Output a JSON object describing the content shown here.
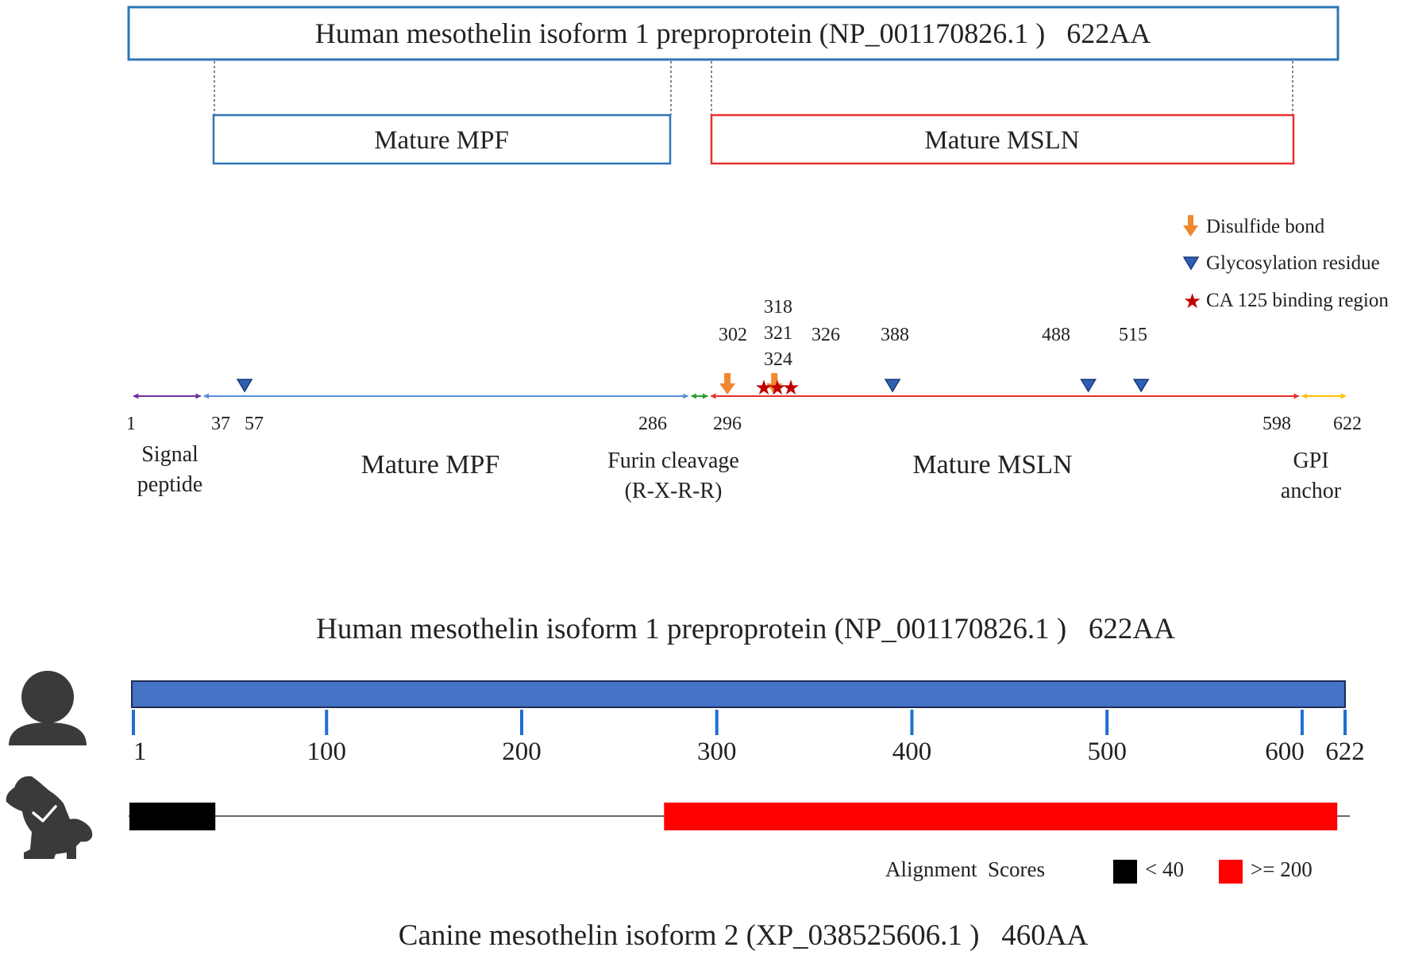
{
  "protein_length": 622,
  "top_box": {
    "label": "Human mesothelin isoform 1 preproprotein (NP_001170826.1 )   622AA",
    "color": "#2e75b6"
  },
  "mature_boxes": {
    "mpf": {
      "label": "Mature MPF",
      "start": 37,
      "end": 286,
      "color": "#2e75b6"
    },
    "msln": {
      "label": "Mature MSLN",
      "start": 296,
      "end": 598,
      "color": "#e8302f"
    }
  },
  "legend": {
    "disulfide": "Disulfide bond",
    "glycosylation": "Glycosylation residue",
    "ca125": "CA 125 binding region",
    "disulfide_color": "#f0882f",
    "glycosylation_color": "#2e5fb3",
    "ca125_color": "#c00000"
  },
  "domain_segments": [
    {
      "name": "signal",
      "start": 1,
      "end": 37,
      "color": "#7030a0"
    },
    {
      "name": "mpf",
      "start": 37,
      "end": 286,
      "color": "#5b8fd6"
    },
    {
      "name": "furin",
      "start": 286,
      "end": 296,
      "color": "#2ca02c"
    },
    {
      "name": "msln",
      "start": 296,
      "end": 598,
      "color": "#e8302f"
    },
    {
      "name": "gpi",
      "start": 598,
      "end": 622,
      "color": "#ffc000"
    }
  ],
  "position_labels": [
    "1",
    "37",
    "57",
    "286",
    "296",
    "598",
    "622"
  ],
  "feature_labels": {
    "p302": "302",
    "p318": "318",
    "p321": "321",
    "p324": "324",
    "p326": "326",
    "p388": "388",
    "p488": "488",
    "p515": "515"
  },
  "domain_labels": {
    "signal_1": "Signal",
    "signal_2": "peptide",
    "mpf": "Mature MPF",
    "furin_1": "Furin cleavage",
    "furin_2": "(R-X-R-R)",
    "msln": "Mature MSLN",
    "gpi_1": "GPI",
    "gpi_2": "anchor"
  },
  "features": {
    "disulfide": [
      302,
      326
    ],
    "glycosylation": [
      57,
      388,
      488,
      515
    ],
    "ca125": [
      318,
      321,
      324
    ]
  },
  "human_title": "Human mesothelin isoform 1 preproprotein (NP_001170826.1 )   622AA",
  "human_bar_color": "#4472c4",
  "scale_ticks": [
    {
      "value": 1,
      "label": "1"
    },
    {
      "value": 100,
      "label": "100"
    },
    {
      "value": 200,
      "label": "200"
    },
    {
      "value": 300,
      "label": "300"
    },
    {
      "value": 400,
      "label": "400"
    },
    {
      "value": 500,
      "label": "500"
    },
    {
      "value": 600,
      "label": "600"
    },
    {
      "value": 622,
      "label": "622"
    }
  ],
  "alignment": {
    "segments": [
      {
        "start": 1,
        "end": 43,
        "score": "< 40",
        "color": "#000000"
      },
      {
        "start": 275,
        "end": 618,
        "score": ">= 200",
        "color": "#ff0000"
      }
    ],
    "legend_title": "Alignment  Scores",
    "legend_low": "< 40",
    "legend_high": ">= 200"
  },
  "canine_title": "Canine mesothelin isoform 2 (XP_038525606.1 )   460AA",
  "icons": {
    "human": "person-icon",
    "dog": "dog-icon"
  }
}
